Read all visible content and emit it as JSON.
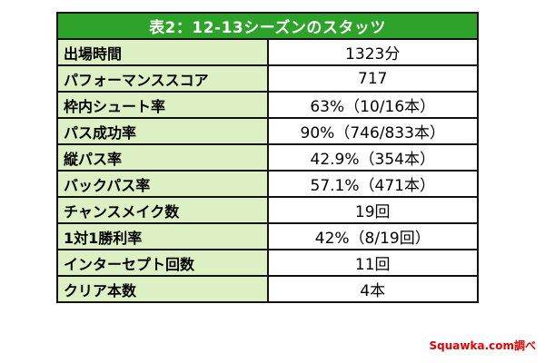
{
  "table": {
    "title": "表2：12-13シーズンのスタッツ",
    "rows": [
      {
        "label": "出場時間",
        "value": "1323分"
      },
      {
        "label": "パフォーマンススコア",
        "value": "717"
      },
      {
        "label": "枠内シュート率",
        "value": "63%（10/16本）"
      },
      {
        "label": "パス成功率",
        "value": "90%（746/833本）"
      },
      {
        "label": "縦パス率",
        "value": "42.9%（354本）"
      },
      {
        "label": "バックパス率",
        "value": "57.1%（471本）"
      },
      {
        "label": "チャンスメイク数",
        "value": "19回"
      },
      {
        "label": "1対1勝利率",
        "value": "42%（8/19回）"
      },
      {
        "label": "インターセプト回数",
        "value": "11回"
      },
      {
        "label": "クリア本数",
        "value": "4本"
      }
    ]
  },
  "credit": "Squawka.com調べ",
  "colors": {
    "header_bg": "#2ea32a",
    "label_bg": "#dcf0c4",
    "credit_text": "#e60000"
  }
}
